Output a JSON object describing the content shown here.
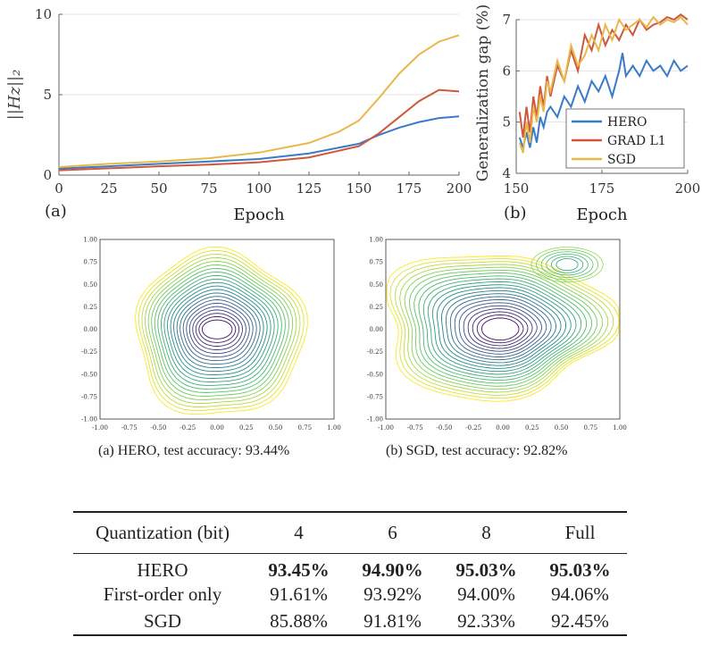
{
  "colors": {
    "hero": "#3a7bc8",
    "grad_l1": "#d0573b",
    "sgd": "#e8b84a"
  },
  "chart_data": [
    {
      "type": "line",
      "panel_label": "(a)",
      "xlabel": "Epoch",
      "ylabel": "||Hz||₂",
      "xlim": [
        0,
        200
      ],
      "ylim": [
        0,
        10
      ],
      "xticks": [
        "0",
        "25",
        "50",
        "75",
        "100",
        "125",
        "150",
        "175",
        "200"
      ],
      "yticks": [
        "0",
        "5",
        "10"
      ],
      "grid": "horizontal",
      "series": [
        {
          "key": "hero",
          "x": [
            0,
            25,
            50,
            75,
            100,
            125,
            150,
            160,
            170,
            180,
            190,
            200
          ],
          "y": [
            0.4,
            0.55,
            0.7,
            0.85,
            1.0,
            1.35,
            1.95,
            2.5,
            2.95,
            3.3,
            3.55,
            3.65
          ]
        },
        {
          "key": "grad_l1",
          "x": [
            0,
            25,
            50,
            75,
            100,
            125,
            150,
            160,
            170,
            180,
            190,
            200
          ],
          "y": [
            0.3,
            0.42,
            0.55,
            0.65,
            0.8,
            1.1,
            1.8,
            2.6,
            3.6,
            4.6,
            5.3,
            5.2
          ]
        },
        {
          "key": "sgd",
          "x": [
            0,
            25,
            50,
            75,
            100,
            125,
            140,
            150,
            160,
            170,
            180,
            190,
            200
          ],
          "y": [
            0.5,
            0.7,
            0.85,
            1.05,
            1.4,
            2.0,
            2.7,
            3.4,
            4.8,
            6.3,
            7.5,
            8.3,
            8.7
          ]
        }
      ]
    },
    {
      "type": "line",
      "panel_label": "(b)",
      "xlabel": "Epoch",
      "ylabel": "Generalization gap (%)",
      "xlim": [
        150,
        200
      ],
      "ylim": [
        4,
        7
      ],
      "xticks": [
        "150",
        "175",
        "200"
      ],
      "yticks": [
        "4",
        "5",
        "6",
        "7"
      ],
      "grid": "horizontal",
      "legend": "bottom-right",
      "series": [
        {
          "name": "HERO",
          "key": "hero",
          "x": [
            151,
            152,
            153,
            154,
            155,
            156,
            157,
            158,
            159,
            160,
            162,
            164,
            166,
            168,
            170,
            172,
            174,
            176,
            178,
            180,
            181,
            182,
            184,
            186,
            188,
            190,
            192,
            194,
            196,
            198,
            200
          ],
          "y": [
            4.7,
            4.5,
            4.8,
            4.5,
            4.9,
            4.6,
            5.1,
            4.9,
            5.2,
            5.3,
            5.1,
            5.5,
            5.3,
            5.7,
            5.4,
            5.8,
            5.6,
            5.9,
            5.5,
            6.0,
            6.35,
            5.9,
            6.1,
            5.9,
            6.2,
            6.0,
            6.1,
            5.9,
            6.2,
            6.0,
            6.1
          ]
        },
        {
          "name": "GRAD L1",
          "key": "grad_l1",
          "x": [
            151,
            152,
            153,
            154,
            155,
            156,
            157,
            158,
            159,
            160,
            162,
            164,
            166,
            168,
            170,
            172,
            174,
            176,
            178,
            180,
            182,
            184,
            186,
            188,
            190,
            192,
            194,
            196,
            198,
            200
          ],
          "y": [
            5.2,
            4.7,
            5.3,
            4.8,
            5.5,
            5.1,
            5.7,
            5.3,
            5.9,
            5.5,
            6.1,
            5.8,
            6.4,
            6.0,
            6.7,
            6.4,
            6.9,
            6.5,
            6.8,
            6.6,
            6.9,
            6.7,
            7.0,
            6.8,
            6.9,
            6.95,
            7.05,
            7.0,
            7.1,
            7.0
          ]
        },
        {
          "name": "SGD",
          "key": "sgd",
          "x": [
            151,
            152,
            153,
            154,
            155,
            156,
            157,
            158,
            159,
            160,
            162,
            164,
            166,
            168,
            170,
            172,
            174,
            176,
            178,
            180,
            182,
            184,
            186,
            188,
            190,
            192,
            194,
            196,
            198,
            200
          ],
          "y": [
            4.6,
            4.4,
            5.0,
            4.6,
            5.3,
            5.0,
            5.5,
            5.2,
            5.8,
            5.6,
            6.2,
            5.8,
            6.5,
            6.1,
            6.3,
            6.7,
            6.4,
            6.9,
            6.6,
            7.0,
            6.8,
            6.9,
            7.0,
            6.85,
            7.05,
            6.9,
            7.0,
            6.95,
            7.05,
            6.9
          ]
        }
      ]
    }
  ],
  "contour_plots": [
    {
      "key": "hero",
      "caption": "(a) HERO, test accuracy: 93.44%",
      "ticks": [
        "-1.00",
        "-0.75",
        "-0.50",
        "-0.25",
        "0.00",
        "0.25",
        "0.50",
        "0.75",
        "1.00"
      ]
    },
    {
      "key": "sgd",
      "caption": "(b) SGD, test accuracy: 92.82%",
      "ticks": [
        "-1.00",
        "-0.75",
        "-0.50",
        "-0.25",
        "0.00",
        "0.25",
        "0.50",
        "0.75",
        "1.00"
      ]
    }
  ],
  "table": {
    "header": [
      "Quantization (bit)",
      "4",
      "6",
      "8",
      "Full"
    ],
    "rows": [
      {
        "name": "HERO",
        "values": [
          "93.45%",
          "94.90%",
          "95.03%",
          "95.03%"
        ],
        "bold": true
      },
      {
        "name": "First-order only",
        "values": [
          "91.61%",
          "93.92%",
          "94.00%",
          "94.06%"
        ],
        "bold": false
      },
      {
        "name": "SGD",
        "values": [
          "85.88%",
          "91.81%",
          "92.33%",
          "92.45%"
        ],
        "bold": false
      }
    ]
  }
}
